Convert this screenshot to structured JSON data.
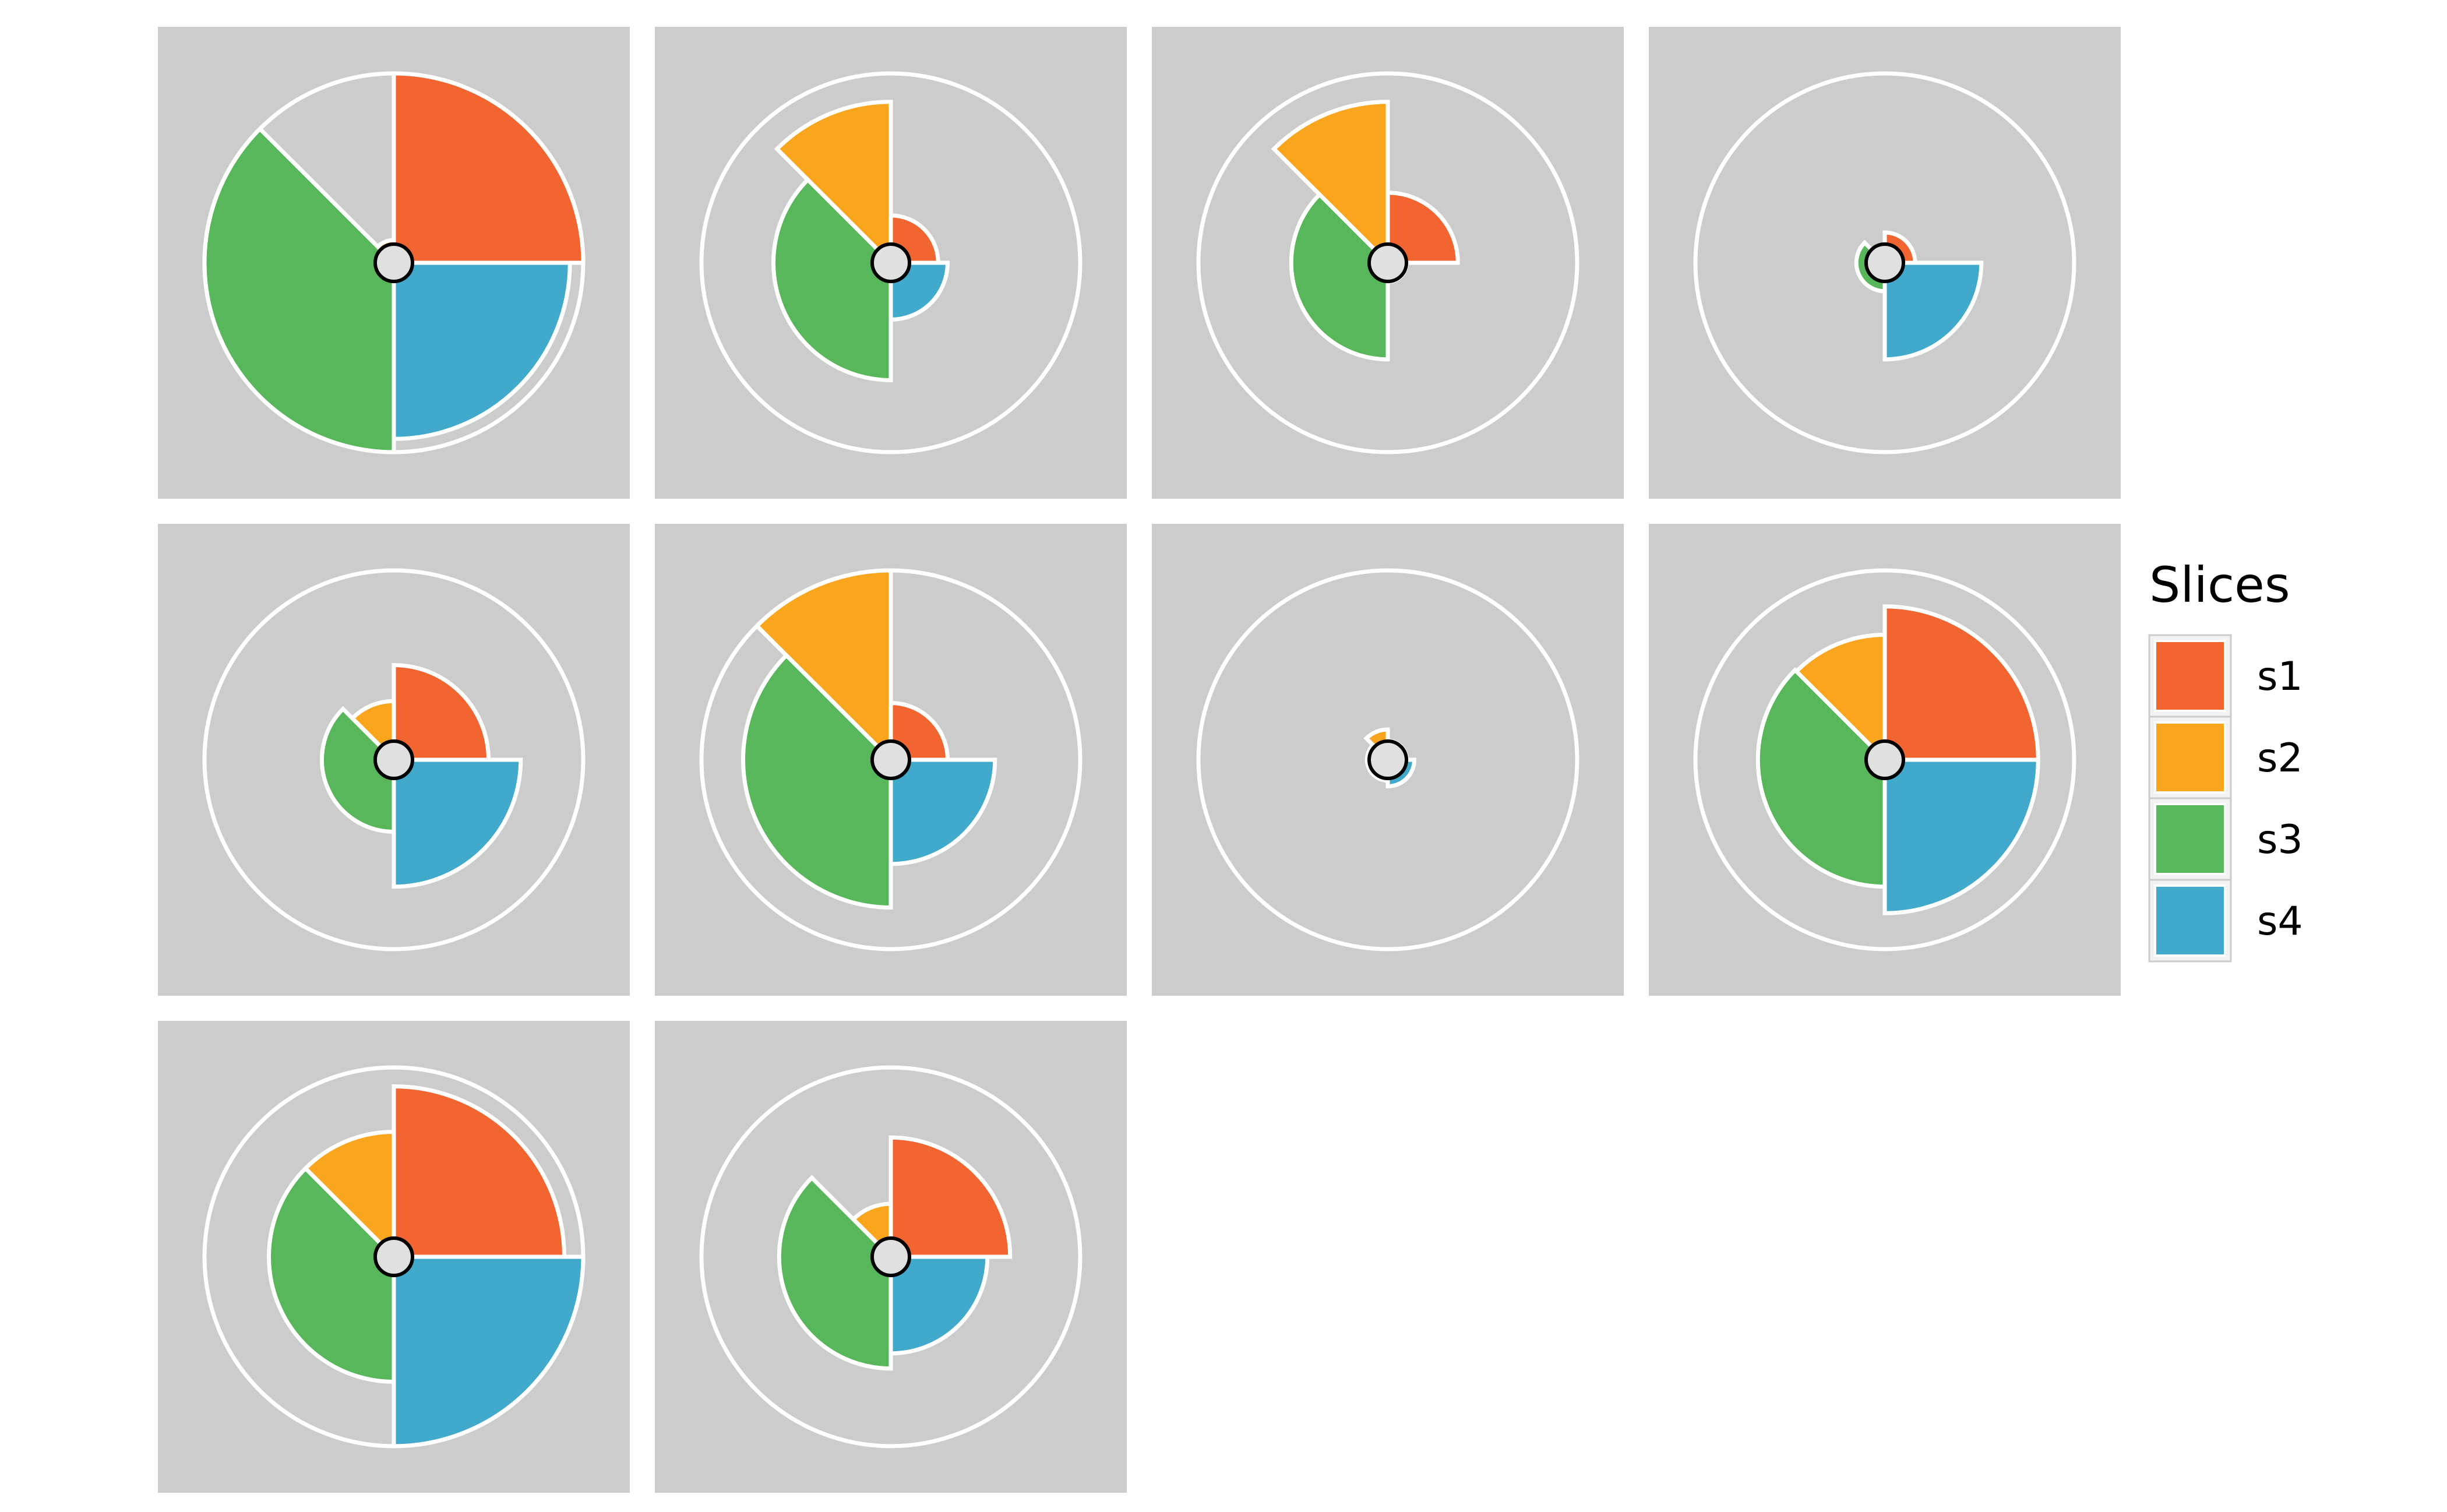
{
  "chart_data": {
    "type": "pie",
    "description": "",
    "legend": {
      "title": "Slices",
      "placement": "right",
      "entries": [
        {
          "label": "s1",
          "color": "#F26430"
        },
        {
          "label": "s2",
          "color": "#F9A61E"
        },
        {
          "label": "s3",
          "color": "#58B75A"
        },
        {
          "label": "s4",
          "color": "#41A9CC"
        }
      ]
    },
    "series": [
      "s1",
      "s2",
      "s3",
      "s4"
    ],
    "colors": {
      "panel_background": "#CCCCCC",
      "reference_ring": "#FFFFFF",
      "slice_outline": "#FFFFFF",
      "center_marker": "#E0E0E0"
    },
    "value_range": [
      0,
      1
    ],
    "reference_ring_value": 1.0,
    "panels": [
      {
        "values": {
          "s1": 1.0,
          "s2": 0.12,
          "s3": 1.0,
          "s4": 0.93
        }
      },
      {
        "values": {
          "s1": 0.25,
          "s2": 0.85,
          "s3": 0.62,
          "s4": 0.3
        }
      },
      {
        "values": {
          "s1": 0.37,
          "s2": 0.85,
          "s3": 0.51,
          "s4": 0.1
        }
      },
      {
        "values": {
          "s1": 0.16,
          "s2": 0.03,
          "s3": 0.15,
          "s4": 0.51
        }
      },
      {
        "values": {
          "s1": 0.5,
          "s2": 0.31,
          "s3": 0.38,
          "s4": 0.67
        }
      },
      {
        "values": {
          "s1": 0.3,
          "s2": 1.0,
          "s3": 0.78,
          "s4": 0.55
        }
      },
      {
        "values": {
          "s1": 0.1,
          "s2": 0.16,
          "s3": 0.11,
          "s4": 0.14
        }
      },
      {
        "values": {
          "s1": 0.81,
          "s2": 0.66,
          "s3": 0.67,
          "s4": 0.81
        }
      },
      {
        "values": {
          "s1": 0.9,
          "s2": 0.66,
          "s3": 0.66,
          "s4": 1.0
        }
      },
      {
        "values": {
          "s1": 0.63,
          "s2": 0.28,
          "s3": 0.59,
          "s4": 0.51
        }
      }
    ]
  }
}
